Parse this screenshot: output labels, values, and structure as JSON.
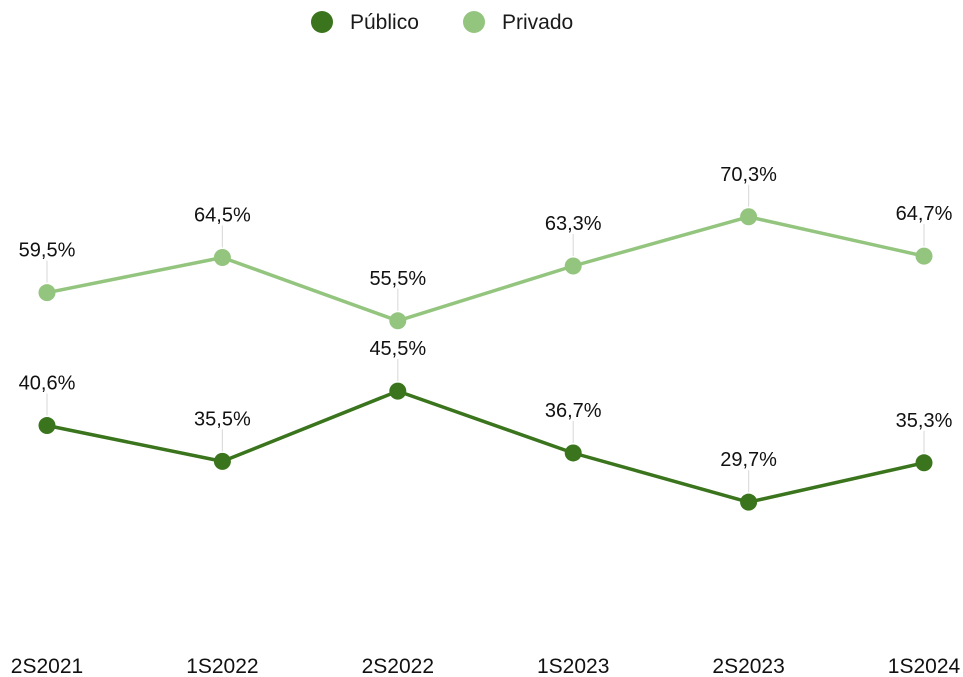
{
  "chart_data": {
    "type": "line",
    "categories": [
      "2S2021",
      "1S2022",
      "2S2022",
      "1S2023",
      "2S2023",
      "1S2024"
    ],
    "series": [
      {
        "name": "Público",
        "color": "#3a741c",
        "values": [
          40.6,
          35.5,
          45.5,
          36.7,
          29.7,
          35.3
        ],
        "labels": [
          "40,6%",
          "35,5%",
          "45,5%",
          "36,7%",
          "29,7%",
          "35,3%"
        ]
      },
      {
        "name": "Privado",
        "color": "#94c57f",
        "values": [
          59.5,
          64.5,
          55.5,
          63.3,
          70.3,
          64.7
        ],
        "labels": [
          "59,5%",
          "64,5%",
          "55,5%",
          "63,3%",
          "70,3%",
          "64,7%"
        ]
      }
    ],
    "legend_position": "top-center",
    "grid": false,
    "title": "",
    "xlabel": "",
    "ylabel": ""
  }
}
